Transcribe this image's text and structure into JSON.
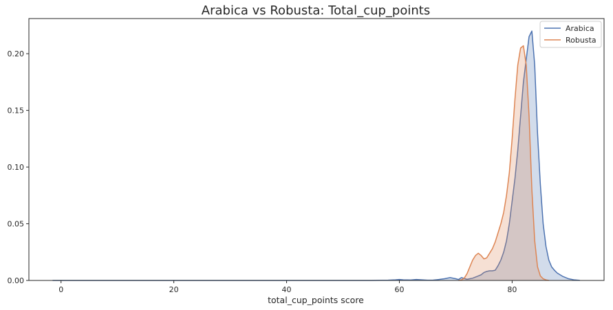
{
  "chart_data": {
    "type": "area",
    "title": "Arabica vs Robusta: Total_cup_points",
    "xlabel": "total_cup_points score",
    "ylabel": "",
    "xlim": [
      -5.7,
      96.3
    ],
    "ylim": [
      0,
      0.231
    ],
    "x_ticks": [
      0,
      20,
      40,
      60,
      80
    ],
    "y_ticks": [
      0.0,
      0.05,
      0.1,
      0.15,
      0.2
    ],
    "x_tick_labels": [
      "0",
      "20",
      "40",
      "60",
      "80"
    ],
    "y_tick_labels": [
      "0.00",
      "0.05",
      "0.10",
      "0.15",
      "0.20"
    ],
    "grid": false,
    "legend_position": "top-right",
    "series": [
      {
        "name": "Arabica",
        "color": "#4c72b0",
        "fill_color": "#4c72b0",
        "x": [
          -1.5,
          10,
          20,
          30,
          40,
          50,
          55,
          58,
          59.3,
          60,
          60.7,
          62,
          63,
          64,
          65,
          66,
          67,
          68,
          69,
          70,
          70.5,
          71,
          71.5,
          72,
          72.5,
          73,
          73.5,
          74,
          74.5,
          75,
          75.5,
          76,
          76.5,
          77,
          77.5,
          78,
          78.5,
          79,
          79.5,
          80,
          80.5,
          81,
          81.5,
          82,
          82.5,
          83,
          83.5,
          84,
          84.5,
          85,
          85.5,
          86,
          86.5,
          87,
          87.5,
          88,
          89,
          90,
          91,
          92
        ],
        "y": [
          0.0,
          0.0,
          0.0,
          0.0,
          0.0,
          0.0,
          0.0,
          0.0002,
          0.0005,
          0.0008,
          0.0005,
          0.0004,
          0.0008,
          0.0005,
          0.0002,
          0.0003,
          0.0008,
          0.0015,
          0.0025,
          0.0015,
          0.0008,
          0.0025,
          0.0018,
          0.001,
          0.0015,
          0.002,
          0.003,
          0.004,
          0.005,
          0.007,
          0.008,
          0.0085,
          0.0085,
          0.009,
          0.013,
          0.018,
          0.025,
          0.035,
          0.05,
          0.07,
          0.09,
          0.115,
          0.145,
          0.175,
          0.195,
          0.215,
          0.22,
          0.19,
          0.13,
          0.085,
          0.05,
          0.03,
          0.018,
          0.012,
          0.009,
          0.0065,
          0.0035,
          0.0015,
          0.0005,
          0.0001
        ]
      },
      {
        "name": "Robusta",
        "color": "#dd8452",
        "fill_color": "#dd8452",
        "x": [
          70.5,
          71,
          71.5,
          72,
          72.5,
          73,
          73.5,
          74,
          74.5,
          75,
          75.5,
          76,
          76.5,
          77,
          77.5,
          78,
          78.5,
          79,
          79.5,
          80,
          80.5,
          81,
          81.5,
          82,
          82.5,
          83,
          83.5,
          84,
          84.5,
          85,
          85.5,
          86,
          86.5
        ],
        "y": [
          0.0,
          0.0005,
          0.002,
          0.006,
          0.012,
          0.018,
          0.022,
          0.024,
          0.022,
          0.019,
          0.02,
          0.024,
          0.028,
          0.034,
          0.042,
          0.05,
          0.06,
          0.075,
          0.095,
          0.125,
          0.16,
          0.19,
          0.205,
          0.207,
          0.19,
          0.145,
          0.08,
          0.035,
          0.012,
          0.004,
          0.0015,
          0.0005,
          0.0
        ]
      }
    ]
  }
}
